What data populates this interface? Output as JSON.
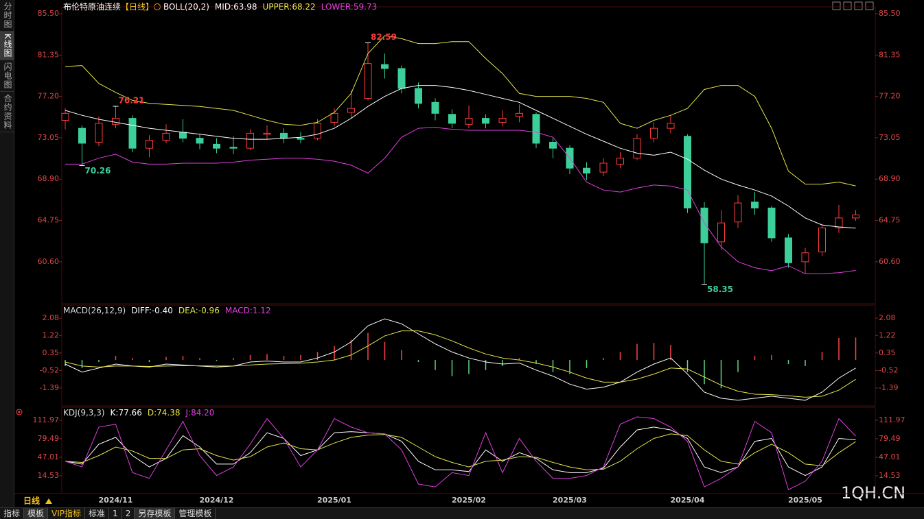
{
  "sidebar": [
    "分时图",
    "K线图",
    "闪电图",
    "合约资料"
  ],
  "toolbar": [
    "指标",
    "模板",
    "VIP指标",
    "标准",
    "1",
    "2",
    "另存模板",
    "管理模板"
  ],
  "period": "日线",
  "watermark": "1QH.CN",
  "chart_data": [
    {
      "type": "candlestick",
      "title": "布伦特原油连续",
      "period_tag": "【日线】",
      "indicator": "BOLL(20,2)",
      "categories": [
        null,
        null,
        null,
        "2024/11",
        null,
        null,
        null,
        null,
        null,
        "2024/12",
        null,
        null,
        null,
        null,
        null,
        null,
        "2025/01",
        null,
        null,
        null,
        null,
        null,
        null,
        null,
        "2025/02",
        null,
        null,
        null,
        null,
        null,
        "2025/03",
        null,
        null,
        null,
        null,
        null,
        null,
        "2025/04",
        null,
        null,
        null,
        null,
        null,
        null,
        "2025/05",
        null,
        null,
        null
      ],
      "open": [
        74.8,
        74.0,
        72.6,
        74.4,
        75.0,
        72.0,
        72.8,
        73.6,
        73.0,
        72.4,
        72.1,
        72.0,
        73.4,
        73.5,
        73.0,
        73.0,
        74.6,
        75.6,
        77.0,
        80.4,
        80.0,
        78.0,
        76.6,
        75.4,
        74.4,
        75.0,
        74.6,
        75.2,
        75.4,
        72.6,
        72.0,
        70.0,
        69.6,
        70.4,
        71.0,
        73.0,
        74.0,
        73.2,
        66.0,
        62.6,
        64.6,
        66.6,
        66.0,
        63.0,
        60.6,
        61.6,
        64.0,
        65.0
      ],
      "high": [
        76.0,
        74.3,
        75.2,
        76.21,
        75.3,
        73.3,
        74.4,
        74.9,
        73.4,
        73.0,
        73.2,
        73.9,
        74.3,
        74.0,
        73.6,
        74.9,
        76.0,
        77.8,
        82.59,
        81.5,
        80.3,
        78.6,
        77.0,
        75.9,
        76.3,
        75.4,
        75.8,
        76.4,
        75.6,
        73.0,
        72.3,
        70.6,
        71.0,
        71.6,
        73.4,
        74.6,
        75.3,
        73.4,
        66.6,
        65.8,
        67.3,
        67.6,
        66.2,
        63.4,
        62.0,
        64.4,
        66.3,
        65.8
      ],
      "low": [
        73.9,
        70.26,
        72.2,
        74.0,
        71.6,
        71.1,
        72.5,
        72.6,
        71.9,
        71.5,
        71.4,
        71.8,
        72.9,
        72.5,
        72.5,
        72.8,
        74.2,
        75.0,
        76.8,
        79.0,
        77.5,
        76.0,
        74.8,
        74.0,
        74.0,
        74.0,
        74.2,
        74.6,
        72.0,
        71.0,
        69.4,
        68.8,
        69.2,
        70.0,
        70.8,
        72.6,
        73.5,
        65.5,
        58.35,
        61.8,
        64.0,
        65.3,
        62.6,
        60.0,
        59.4,
        61.2,
        63.5,
        64.7
      ],
      "close": [
        75.5,
        72.5,
        74.5,
        75.0,
        72.0,
        72.8,
        73.5,
        73.0,
        72.5,
        72.0,
        72.0,
        73.5,
        73.5,
        73.0,
        72.9,
        74.5,
        75.5,
        76.0,
        80.5,
        80.0,
        78.0,
        76.5,
        75.5,
        74.5,
        75.0,
        74.5,
        75.0,
        75.5,
        72.5,
        72.0,
        70.0,
        69.5,
        70.5,
        71.0,
        73.0,
        74.0,
        74.5,
        66.0,
        62.5,
        64.5,
        66.5,
        66.0,
        63.0,
        60.5,
        61.5,
        64.0,
        65.0,
        65.3
      ],
      "up_color": "#ff3c3c",
      "down_color": "#3ccf9a",
      "series": [
        {
          "name": "MID:",
          "color": "#ffffff",
          "values": [
            75.8,
            75.3,
            74.9,
            74.6,
            74.3,
            74.0,
            73.8,
            73.6,
            73.4,
            73.2,
            73.0,
            72.9,
            72.9,
            73.0,
            73.1,
            73.4,
            74.0,
            75.0,
            76.2,
            77.2,
            78.0,
            78.3,
            78.3,
            78.1,
            77.8,
            77.4,
            77.0,
            76.6,
            75.8,
            75.0,
            74.2,
            73.4,
            72.7,
            72.0,
            71.5,
            71.3,
            71.6,
            70.9,
            69.8,
            68.9,
            68.3,
            67.8,
            67.2,
            66.2,
            65.0,
            64.3,
            64.1,
            63.98
          ]
        },
        {
          "name": "UPPER:",
          "color": "#e6e64a",
          "values": [
            80.2,
            80.3,
            78.5,
            77.6,
            76.8,
            76.5,
            76.4,
            76.3,
            76.2,
            76.0,
            75.8,
            75.3,
            74.8,
            74.4,
            74.3,
            74.6,
            75.6,
            77.5,
            81.5,
            83.3,
            83.0,
            82.5,
            82.5,
            82.7,
            82.7,
            81.0,
            79.5,
            77.5,
            77.2,
            77.2,
            77.2,
            77.0,
            76.6,
            74.5,
            74.0,
            74.8,
            75.3,
            76.0,
            77.9,
            78.3,
            78.3,
            77.2,
            74.0,
            69.7,
            68.4,
            68.4,
            68.6,
            68.22
          ]
        },
        {
          "name": "LOWER:",
          "color": "#e040e0",
          "values": [
            70.4,
            70.4,
            71.0,
            71.4,
            70.6,
            70.4,
            70.4,
            70.5,
            70.5,
            70.5,
            70.6,
            70.8,
            70.9,
            71.0,
            71.0,
            70.9,
            70.7,
            70.3,
            69.5,
            71.0,
            73.1,
            74.0,
            74.1,
            73.9,
            73.8,
            73.8,
            73.8,
            73.8,
            73.6,
            73.1,
            71.0,
            68.6,
            67.8,
            67.6,
            68.0,
            68.3,
            68.2,
            67.8,
            64.5,
            62.1,
            60.6,
            60.0,
            59.7,
            60.2,
            59.4,
            59.4,
            59.5,
            59.73
          ]
        }
      ],
      "ylim": [
        56.39,
        86.19
      ],
      "yticks": [
        {
          "value": 85.5,
          "label": "85.50"
        },
        81.35,
        {
          "value": 77.2,
          "label": "77.20"
        },
        73.05,
        {
          "value": 68.9,
          "label": "68.90"
        },
        64.75,
        {
          "value": 60.6,
          "label": "60.60"
        }
      ]
    },
    {
      "type": "macd",
      "title": "MACD(26,12,9)",
      "up_color": "#ff4444",
      "down_color": "#5fd97f",
      "series": [
        {
          "name": "DIFF:",
          "color": "#ffffff",
          "style": "line",
          "values": [
            -0.2,
            -0.6,
            -0.4,
            -0.2,
            -0.3,
            -0.35,
            -0.2,
            -0.25,
            -0.3,
            -0.35,
            -0.3,
            -0.1,
            -0.05,
            -0.1,
            -0.1,
            0.1,
            0.4,
            0.9,
            1.7,
            2.05,
            1.8,
            1.3,
            0.8,
            0.4,
            0.1,
            -0.1,
            -0.2,
            -0.15,
            -0.5,
            -0.8,
            -1.2,
            -1.45,
            -1.35,
            -1.1,
            -0.6,
            -0.2,
            0.1,
            -0.7,
            -1.6,
            -1.9,
            -2.0,
            -1.9,
            -1.8,
            -1.9,
            -2.0,
            -1.6,
            -0.9,
            -0.4
          ],
          "value_labels": [
            null,
            null,
            null,
            null,
            null,
            null,
            null,
            null,
            null,
            null,
            null,
            null,
            null,
            null,
            null,
            null,
            null,
            null,
            null,
            null,
            null,
            null,
            null,
            null,
            null,
            null,
            null,
            null,
            null,
            null,
            null,
            null,
            null,
            null,
            null,
            null,
            null,
            null,
            null,
            null,
            null,
            null,
            null,
            null,
            null,
            null,
            null,
            "-0.40"
          ]
        },
        {
          "name": "DEA:",
          "color": "#e6e64a",
          "style": "line",
          "values": [
            -0.1,
            -0.3,
            -0.35,
            -0.3,
            -0.3,
            -0.32,
            -0.3,
            -0.28,
            -0.29,
            -0.3,
            -0.3,
            -0.25,
            -0.2,
            -0.18,
            -0.16,
            -0.1,
            0.0,
            0.25,
            0.7,
            1.2,
            1.45,
            1.45,
            1.25,
            0.95,
            0.6,
            0.3,
            0.1,
            0.0,
            -0.15,
            -0.35,
            -0.6,
            -0.9,
            -1.1,
            -1.1,
            -0.95,
            -0.7,
            -0.4,
            -0.45,
            -0.85,
            -1.25,
            -1.55,
            -1.7,
            -1.72,
            -1.78,
            -1.85,
            -1.8,
            -1.5,
            -0.96
          ]
        },
        {
          "name": "MACD:",
          "color": "#e040e0",
          "style": "bar",
          "values": [
            -0.3,
            -0.4,
            -0.1,
            0.2,
            0.1,
            -0.1,
            0.15,
            0.2,
            0.1,
            -0.05,
            0.1,
            0.25,
            0.3,
            0.2,
            0.25,
            0.4,
            0.7,
            1.0,
            1.35,
            0.9,
            0.5,
            -0.1,
            -0.5,
            -0.8,
            -0.7,
            -0.5,
            -0.3,
            0.1,
            -0.2,
            -0.6,
            -0.7,
            -0.4,
            0.1,
            0.4,
            0.8,
            0.85,
            0.75,
            -0.6,
            -1.2,
            -1.4,
            -0.6,
            0.2,
            0.25,
            -0.2,
            -0.3,
            0.4,
            1.1,
            1.12
          ]
        }
      ],
      "ylim": [
        -2.28,
        2.73
      ],
      "yticks": [
        2.08,
        1.22,
        0.35,
        -0.52,
        -1.39
      ]
    },
    {
      "type": "line",
      "title": "KDJ(9,3,3)",
      "series": [
        {
          "name": "K:",
          "color": "#ffffff",
          "values": [
            40,
            35,
            70,
            82,
            50,
            30,
            45,
            85,
            65,
            35,
            35,
            55,
            90,
            80,
            50,
            60,
            90,
            92,
            90,
            88,
            75,
            40,
            25,
            25,
            22,
            60,
            40,
            55,
            45,
            25,
            20,
            20,
            28,
            65,
            95,
            100,
            95,
            80,
            30,
            20,
            30,
            75,
            80,
            30,
            15,
            30,
            80,
            77.66
          ]
        },
        {
          "name": "D:",
          "color": "#e6e64a",
          "values": [
            40,
            38,
            50,
            65,
            58,
            45,
            45,
            60,
            62,
            50,
            42,
            48,
            65,
            72,
            62,
            60,
            72,
            82,
            86,
            87,
            82,
            65,
            48,
            38,
            30,
            40,
            42,
            48,
            47,
            38,
            30,
            25,
            26,
            40,
            62,
            80,
            88,
            85,
            60,
            40,
            35,
            55,
            70,
            55,
            35,
            32,
            55,
            74.38
          ]
        },
        {
          "name": "J:",
          "color": "#e040e0",
          "values": [
            40,
            30,
            100,
            105,
            20,
            10,
            60,
            110,
            50,
            15,
            30,
            70,
            115,
            80,
            30,
            60,
            115,
            100,
            90,
            88,
            60,
            0,
            -5,
            20,
            15,
            90,
            20,
            80,
            40,
            10,
            10,
            15,
            30,
            105,
            118,
            115,
            100,
            75,
            -5,
            10,
            30,
            110,
            90,
            -10,
            5,
            40,
            115,
            84.2
          ],
          "value_labels": [
            null,
            null,
            null,
            null,
            null,
            null,
            null,
            null,
            null,
            null,
            null,
            null,
            null,
            null,
            null,
            null,
            null,
            null,
            null,
            null,
            null,
            null,
            null,
            null,
            null,
            null,
            null,
            null,
            null,
            null,
            null,
            null,
            null,
            null,
            null,
            null,
            null,
            null,
            null,
            null,
            null,
            null,
            null,
            null,
            null,
            null,
            null,
            "84.20"
          ]
        }
      ],
      "ylim": [
        -16.8,
        134.8
      ],
      "yticks": [
        111.97,
        79.49,
        47.01,
        14.53
      ]
    }
  ]
}
